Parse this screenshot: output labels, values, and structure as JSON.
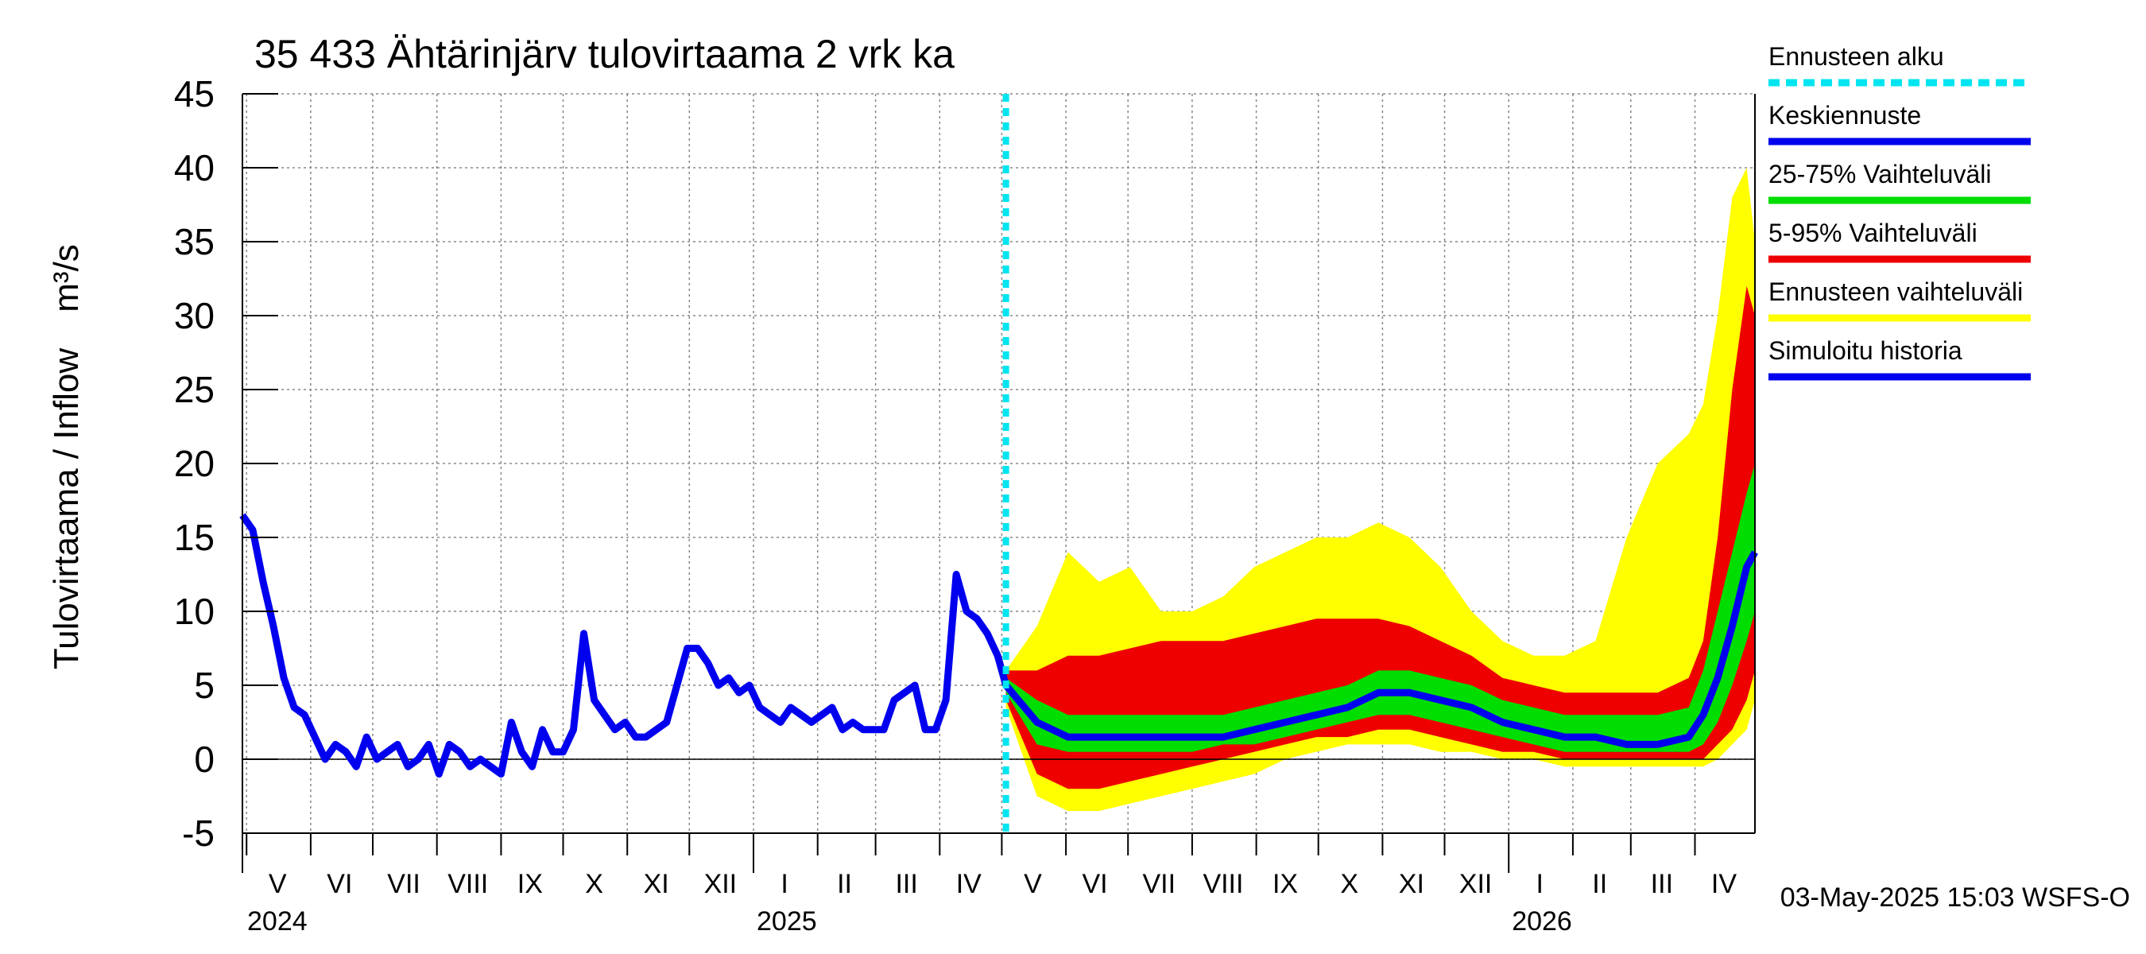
{
  "chart_data": {
    "type": "area",
    "title": "35 433 Ähtärinjärv tulovirtaama 2 vrk ka",
    "ylabel": "Tulovirtaama / Inflow",
    "yunit": "m³/s",
    "ylim": [
      -5,
      45
    ],
    "yticks": [
      "45",
      "40",
      "35",
      "30",
      "25",
      "20",
      "15",
      "10",
      "5",
      "0",
      "-5"
    ],
    "xlim": [
      "2024-04-29",
      "2026-04-30"
    ],
    "grid": true,
    "month_labels": [
      {
        "label": "V",
        "date": "2024-05-16"
      },
      {
        "label": "VI",
        "date": "2024-06-15"
      },
      {
        "label": "VII",
        "date": "2024-07-16"
      },
      {
        "label": "VIII",
        "date": "2024-08-16"
      },
      {
        "label": "IX",
        "date": "2024-09-15"
      },
      {
        "label": "X",
        "date": "2024-10-16"
      },
      {
        "label": "XI",
        "date": "2024-11-15"
      },
      {
        "label": "XII",
        "date": "2024-12-16"
      },
      {
        "label": "I",
        "date": "2025-01-16"
      },
      {
        "label": "II",
        "date": "2025-02-14"
      },
      {
        "label": "III",
        "date": "2025-03-16"
      },
      {
        "label": "IV",
        "date": "2025-04-15"
      },
      {
        "label": "V",
        "date": "2025-05-16"
      },
      {
        "label": "VI",
        "date": "2025-06-15"
      },
      {
        "label": "VII",
        "date": "2025-07-16"
      },
      {
        "label": "VIII",
        "date": "2025-08-16"
      },
      {
        "label": "IX",
        "date": "2025-09-15"
      },
      {
        "label": "X",
        "date": "2025-10-16"
      },
      {
        "label": "XI",
        "date": "2025-11-15"
      },
      {
        "label": "XII",
        "date": "2025-12-16"
      },
      {
        "label": "I",
        "date": "2026-01-16"
      },
      {
        "label": "II",
        "date": "2026-02-14"
      },
      {
        "label": "III",
        "date": "2026-03-16"
      },
      {
        "label": "IV",
        "date": "2026-04-15"
      }
    ],
    "year_labels": [
      {
        "label": "2024",
        "date": "2024-05-01"
      },
      {
        "label": "2025",
        "date": "2025-01-01"
      },
      {
        "label": "2026",
        "date": "2026-01-01"
      }
    ],
    "forecast_start": "2025-05-03",
    "legend_position": "right",
    "legend": [
      {
        "key": "forecast_start",
        "label": "Ennusteen alku",
        "color": "#00e5f0",
        "style": "dashed"
      },
      {
        "key": "mean",
        "label": "Keskiennuste",
        "color": "#0000ee",
        "style": "solid"
      },
      {
        "key": "p25_75",
        "label": "25-75% Vaihteluväli",
        "color": "#00dd00",
        "style": "solid"
      },
      {
        "key": "p5_95",
        "label": "5-95% Vaihteluväli",
        "color": "#ee0000",
        "style": "solid"
      },
      {
        "key": "range",
        "label": "Ennusteen vaihteluväli",
        "color": "#ffff00",
        "style": "solid"
      },
      {
        "key": "history",
        "label": "Simuloitu historia",
        "color": "#0000ee",
        "style": "solid"
      }
    ],
    "history": {
      "name": "Simuloitu historia",
      "x": [
        "2024-04-29",
        "2024-05-04",
        "2024-05-09",
        "2024-05-14",
        "2024-05-19",
        "2024-05-24",
        "2024-05-29",
        "2024-06-03",
        "2024-06-08",
        "2024-06-13",
        "2024-06-18",
        "2024-06-23",
        "2024-06-28",
        "2024-07-03",
        "2024-07-08",
        "2024-07-13",
        "2024-07-18",
        "2024-07-23",
        "2024-07-28",
        "2024-08-02",
        "2024-08-07",
        "2024-08-12",
        "2024-08-17",
        "2024-08-22",
        "2024-08-27",
        "2024-09-01",
        "2024-09-06",
        "2024-09-11",
        "2024-09-16",
        "2024-09-21",
        "2024-09-26",
        "2024-10-01",
        "2024-10-06",
        "2024-10-11",
        "2024-10-16",
        "2024-10-21",
        "2024-10-26",
        "2024-10-31",
        "2024-11-05",
        "2024-11-10",
        "2024-11-15",
        "2024-11-20",
        "2024-11-25",
        "2024-11-30",
        "2024-12-05",
        "2024-12-10",
        "2024-12-15",
        "2024-12-20",
        "2024-12-25",
        "2024-12-30",
        "2025-01-04",
        "2025-01-09",
        "2025-01-14",
        "2025-01-19",
        "2025-01-24",
        "2025-01-29",
        "2025-02-03",
        "2025-02-08",
        "2025-02-13",
        "2025-02-18",
        "2025-02-23",
        "2025-02-28",
        "2025-03-05",
        "2025-03-10",
        "2025-03-15",
        "2025-03-20",
        "2025-03-25",
        "2025-03-30",
        "2025-04-04",
        "2025-04-09",
        "2025-04-14",
        "2025-04-19",
        "2025-04-24",
        "2025-04-29",
        "2025-05-03"
      ],
      "y": [
        16.5,
        15.5,
        12,
        9,
        5.5,
        3.5,
        3,
        1.5,
        0,
        1,
        0.5,
        -0.5,
        1.5,
        0,
        0.5,
        1,
        -0.5,
        0,
        1,
        -1,
        1,
        0.5,
        -0.5,
        0,
        -0.5,
        -1,
        2.5,
        0.5,
        -0.5,
        2,
        0.5,
        0.5,
        2,
        8.5,
        4,
        3,
        2,
        2.5,
        1.5,
        1.5,
        2,
        2.5,
        5,
        7.5,
        7.5,
        6.5,
        5,
        5.5,
        4.5,
        5,
        3.5,
        3,
        2.5,
        3.5,
        3,
        2.5,
        3,
        3.5,
        2,
        2.5,
        2,
        2,
        2,
        4,
        4.5,
        5,
        2,
        2,
        4,
        12.5,
        10,
        9.5,
        8.5,
        7,
        5
      ]
    },
    "forecast": {
      "x": [
        "2025-05-03",
        "2025-05-18",
        "2025-06-02",
        "2025-06-17",
        "2025-07-02",
        "2025-07-17",
        "2025-08-01",
        "2025-08-16",
        "2025-08-31",
        "2025-09-15",
        "2025-09-30",
        "2025-10-15",
        "2025-10-30",
        "2025-11-14",
        "2025-11-29",
        "2025-12-14",
        "2025-12-29",
        "2026-01-13",
        "2026-01-28",
        "2026-02-12",
        "2026-02-27",
        "2026-03-14",
        "2026-03-29",
        "2026-04-05",
        "2026-04-12",
        "2026-04-19",
        "2026-04-26",
        "2026-04-30"
      ],
      "mean": [
        5,
        2.5,
        1.5,
        1.5,
        1.5,
        1.5,
        1.5,
        1.5,
        2,
        2.5,
        3,
        3.5,
        4.5,
        4.5,
        4,
        3.5,
        2.5,
        2,
        1.5,
        1.5,
        1,
        1,
        1.5,
        3,
        5.5,
        9,
        13,
        14
      ],
      "p25": [
        4.5,
        1,
        0.5,
        0.5,
        0.5,
        0.5,
        0.5,
        1,
        1,
        1.5,
        2,
        2.5,
        3,
        3,
        2.5,
        2,
        1.5,
        1,
        0.5,
        0.5,
        0.5,
        0.5,
        0.5,
        1,
        2.5,
        5,
        8,
        10
      ],
      "p75": [
        5.5,
        4,
        3,
        3,
        3,
        3,
        3,
        3,
        3.5,
        4,
        4.5,
        5,
        6,
        6,
        5.5,
        5,
        4,
        3.5,
        3,
        3,
        3,
        3,
        3.5,
        6,
        10,
        14,
        18,
        20
      ],
      "p5": [
        4,
        -1,
        -2,
        -2,
        -1.5,
        -1,
        -0.5,
        0,
        0.5,
        1,
        1.5,
        1.5,
        2,
        2,
        1.5,
        1,
        0.5,
        0.5,
        0,
        0,
        0,
        0,
        0,
        0,
        1,
        2,
        4,
        6
      ],
      "p95": [
        6,
        6,
        7,
        7,
        7.5,
        8,
        8,
        8,
        8.5,
        9,
        9.5,
        9.5,
        9.5,
        9,
        8,
        7,
        5.5,
        5,
        4.5,
        4.5,
        4.5,
        4.5,
        5.5,
        8,
        15,
        25,
        32,
        30
      ],
      "min": [
        3.5,
        -2.5,
        -3.5,
        -3.5,
        -3,
        -2.5,
        -2,
        -1.5,
        -1,
        0,
        0.5,
        1,
        1,
        1,
        0.5,
        0.5,
        0,
        0,
        -0.5,
        -0.5,
        -0.5,
        -0.5,
        -0.5,
        -0.5,
        0,
        1,
        2,
        4
      ],
      "max": [
        6,
        9,
        14,
        12,
        13,
        10,
        10,
        11,
        13,
        14,
        15,
        15,
        16,
        15,
        13,
        10,
        8,
        7,
        7,
        8,
        15,
        20,
        22,
        24,
        30,
        38,
        40,
        35
      ]
    }
  },
  "footer": {
    "timestamp": "03-May-2025 15:03 WSFS-O"
  }
}
